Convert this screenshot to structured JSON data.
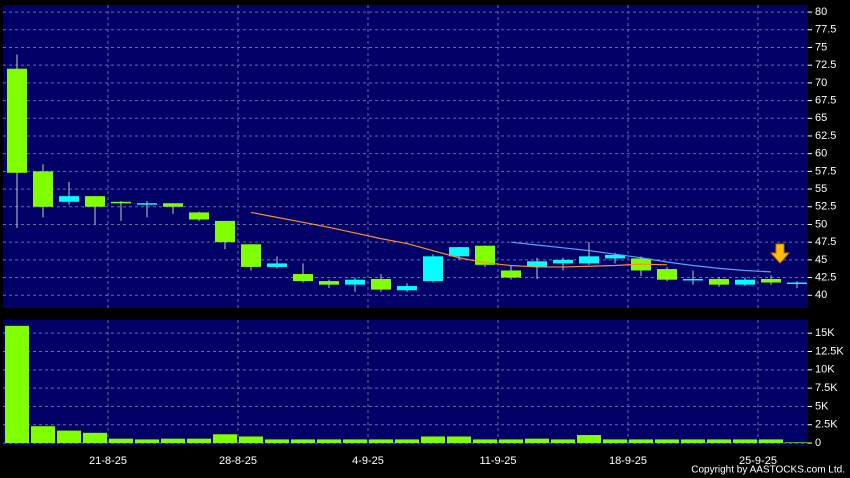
{
  "chart_data": [
    {
      "type": "candlestick",
      "categories": [
        null,
        null,
        null,
        "21-8-25",
        null,
        null,
        null,
        null,
        "28-8-25",
        null,
        null,
        null,
        null,
        "4-9-25",
        null,
        null,
        null,
        null,
        "11-9-25",
        null,
        null,
        null,
        null,
        "18-9-25",
        null,
        null,
        null,
        null,
        "25-9-25",
        null,
        null
      ],
      "open": [
        72,
        57.5,
        53.2,
        54,
        53.2,
        53,
        53,
        51.7,
        50.5,
        47.2,
        44,
        43,
        42,
        41.5,
        42.3,
        40.7,
        42,
        45.5,
        47,
        43.5,
        44,
        44.5,
        44.5,
        45.2,
        45.2,
        43.7,
        42.3,
        42.3,
        41.5,
        42.3,
        41.8
      ],
      "high": [
        74,
        58.5,
        56,
        54,
        53.3,
        53.3,
        53,
        51.8,
        50.5,
        47.2,
        45.5,
        44.5,
        42.2,
        42.5,
        43,
        41.7,
        45.8,
        46.8,
        47,
        44.2,
        45.3,
        45.3,
        47.5,
        46,
        45.5,
        44,
        43.5,
        42.5,
        42.5,
        42.8,
        42
      ],
      "low": [
        49.5,
        51,
        52.8,
        50,
        50.5,
        51,
        51.5,
        50.5,
        46.5,
        43.5,
        43.8,
        41.8,
        41,
        40.5,
        40.5,
        40.5,
        41.8,
        45,
        44,
        42.2,
        42.3,
        43.5,
        44.3,
        44.5,
        42.7,
        42,
        41.5,
        41.2,
        41.3,
        41.5,
        41
      ],
      "close": [
        57.3,
        52.5,
        54,
        52.5,
        53,
        53,
        52.5,
        50.7,
        47.5,
        44,
        44.5,
        42,
        41.5,
        42.2,
        40.8,
        41.3,
        45.5,
        46.8,
        44.3,
        42.5,
        44.8,
        45,
        45.5,
        45.7,
        43.5,
        42.2,
        42.3,
        41.5,
        42.2,
        41.8,
        41.8
      ],
      "up_color": "#00ffff",
      "down_color": "#80ff00",
      "series": [
        {
          "color": "#ff8c28",
          "values": [
            null,
            null,
            null,
            null,
            null,
            null,
            null,
            null,
            null,
            51.7,
            51,
            50.3,
            49.6,
            48.8,
            48,
            47.3,
            46.3,
            45.3,
            44.6,
            44.2,
            44,
            44,
            44.1,
            44.2,
            44.4,
            44.3,
            null,
            null,
            null,
            null,
            null
          ]
        },
        {
          "color": "#5aa0ff",
          "values": [
            null,
            null,
            null,
            null,
            null,
            null,
            null,
            null,
            null,
            null,
            null,
            null,
            null,
            null,
            null,
            null,
            null,
            null,
            null,
            47.5,
            47.1,
            46.7,
            46.3,
            45.8,
            45.3,
            44.7,
            44.2,
            43.8,
            43.5,
            43.3,
            null
          ]
        }
      ],
      "ylim": [
        38.2,
        81
      ],
      "yticks": [
        40,
        42.5,
        45,
        47.5,
        50,
        52.5,
        55,
        57.5,
        60,
        62.5,
        65,
        67.5,
        70,
        72.5,
        75,
        77.5,
        80
      ],
      "grid": true
    },
    {
      "type": "bar",
      "color": "#80ff00",
      "values": [
        16000,
        2300,
        1700,
        1400,
        600,
        500,
        600,
        600,
        1200,
        900,
        500,
        500,
        500,
        500,
        500,
        500,
        900,
        900,
        500,
        500,
        600,
        500,
        1100,
        500,
        500,
        500,
        500,
        500,
        500,
        500,
        100
      ],
      "ylim": [
        -400,
        16800
      ],
      "yticks": [
        0,
        {
          "value": 2500,
          "label": "2.5K"
        },
        {
          "value": 5000,
          "label": "5K"
        },
        {
          "value": 7500,
          "label": "7.5K"
        },
        {
          "value": 10000,
          "label": "10K"
        },
        {
          "value": 12500,
          "label": "12.5K"
        },
        {
          "value": 15000,
          "label": "15K"
        }
      ],
      "grid": true
    }
  ],
  "copyright": "Copyright by AASTOCKS.com Ltd."
}
